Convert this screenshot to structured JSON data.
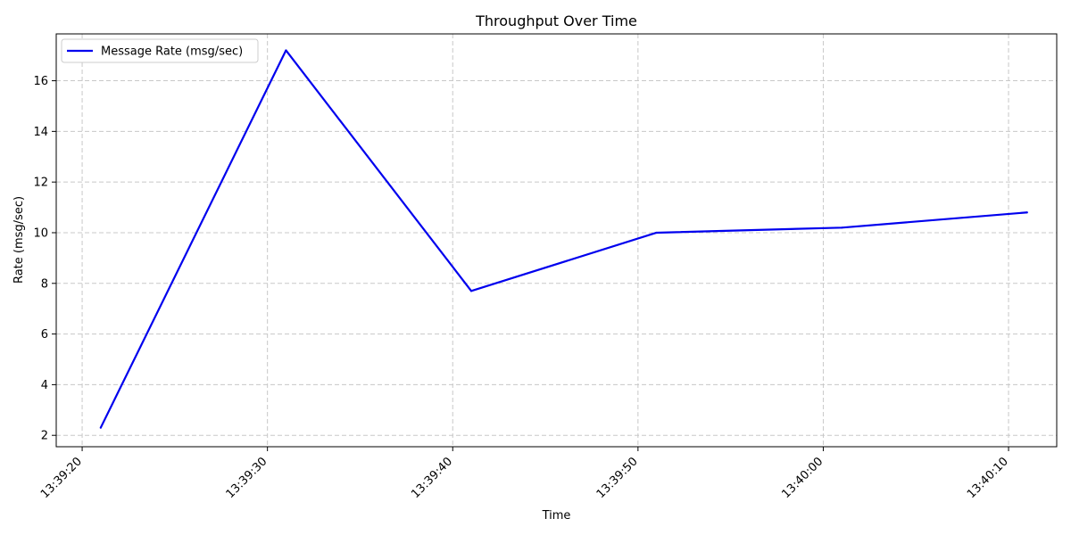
{
  "chart_data": {
    "type": "line",
    "title": "Throughput Over Time",
    "xlabel": "Time",
    "ylabel": "Rate (msg/sec)",
    "x_ticks": [
      "13:39:20",
      "13:39:30",
      "13:39:40",
      "13:39:50",
      "13:40:00",
      "13:40:10"
    ],
    "y_ticks": [
      2,
      4,
      6,
      8,
      10,
      12,
      14,
      16
    ],
    "xlim": [
      "13:39:18.6",
      "13:40:12.6"
    ],
    "ylim": [
      1.55,
      17.85
    ],
    "grid": true,
    "legend_position": "top-left",
    "series": [
      {
        "name": "Message Rate (msg/sec)",
        "color": "#0000ee",
        "x": [
          "13:39:21",
          "13:39:31",
          "13:39:41",
          "13:39:51",
          "13:40:01",
          "13:40:11"
        ],
        "y": [
          2.3,
          17.2,
          7.7,
          10.0,
          10.2,
          10.8
        ]
      }
    ]
  }
}
